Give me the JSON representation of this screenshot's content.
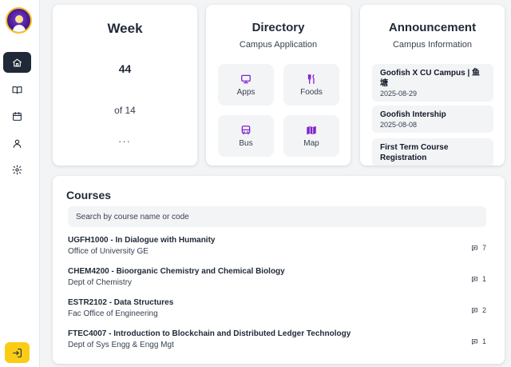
{
  "sidebar": {
    "nav": [
      {
        "icon": "home-icon",
        "active": true
      },
      {
        "icon": "book-icon",
        "active": false
      },
      {
        "icon": "calendar-icon",
        "active": false
      },
      {
        "icon": "user-icon",
        "active": false
      },
      {
        "icon": "gear-icon",
        "active": false
      }
    ],
    "logout_icon": "logout-icon",
    "accent": "#facc15"
  },
  "week": {
    "title": "Week",
    "number": "44",
    "of": "of 14",
    "ellipsis": "..."
  },
  "directory": {
    "title": "Directory",
    "subtitle": "Campus Application",
    "apps": [
      {
        "label": "Apps",
        "icon": "monitor-icon"
      },
      {
        "label": "Foods",
        "icon": "utensils-icon"
      },
      {
        "label": "Bus",
        "icon": "bus-icon"
      },
      {
        "label": "Map",
        "icon": "map-icon"
      }
    ],
    "icon_color": "#7e22ce"
  },
  "announcement": {
    "title": "Announcement",
    "subtitle": "Campus Information",
    "items": [
      {
        "title": "Goofish X CU Campus | 鱼塘",
        "date": "2025-08-29"
      },
      {
        "title": "Goofish Intership",
        "date": "2025-08-08"
      },
      {
        "title": "First Term Course Registration",
        "date": ""
      }
    ]
  },
  "courses": {
    "title": "Courses",
    "search_placeholder": "Search by course name or code",
    "list": [
      {
        "code": "UGFH1000 - In Dialogue with Humanity",
        "dept": "Office of University GE",
        "comments": "7"
      },
      {
        "code": "CHEM4200 - Bioorganic Chemistry and Chemical Biology",
        "dept": "Dept of Chemistry",
        "comments": "1"
      },
      {
        "code": "ESTR2102 - Data Structures",
        "dept": "Fac Office of Engineering",
        "comments": "2"
      },
      {
        "code": "FTEC4007 - Introduction to Blockchain and Distributed Ledger Technology",
        "dept": "Dept of Sys Engg & Engg Mgt",
        "comments": "1"
      }
    ]
  }
}
